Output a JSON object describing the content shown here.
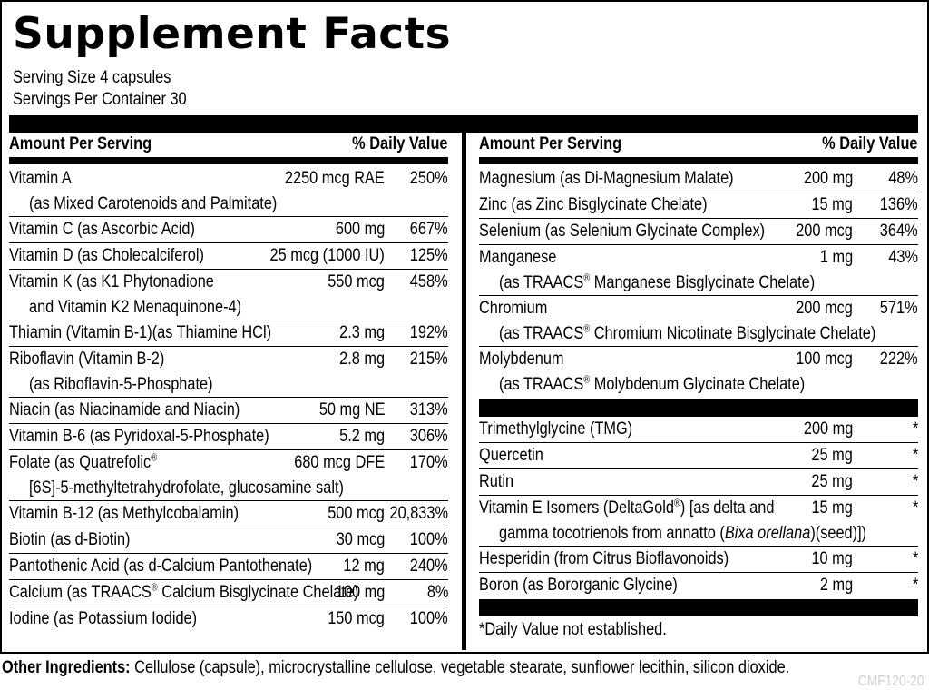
{
  "title": "Supplement Facts",
  "serving_size": "Serving Size 4 capsules",
  "servings_per_container": "Servings Per Container 30",
  "header": {
    "amount": "Amount Per Serving",
    "dv": "% Daily Value"
  },
  "left": [
    {
      "name": "Vitamin A",
      "name2": "(as Mixed Carotenoids and Palmitate)",
      "amount": "2250 mcg RAE",
      "dv": "250%"
    },
    {
      "name": "Vitamin C (as Ascorbic Acid)",
      "amount": "600 mg",
      "dv": "667%"
    },
    {
      "name": "Vitamin D (as Cholecalciferol)",
      "amount": "25 mcg (1000 IU)",
      "dv": "125%"
    },
    {
      "name": "Vitamin K (as K1 Phytonadione",
      "name2": "and Vitamin K2 Menaquinone-4)",
      "amount": "550 mcg",
      "dv": "458%"
    },
    {
      "name": "Thiamin (Vitamin B-1)(as Thiamine HCl)",
      "amount": "2.3 mg",
      "dv": "192%"
    },
    {
      "name": "Riboflavin (Vitamin B-2)",
      "name2": "(as Riboflavin-5-Phosphate)",
      "amount": "2.8 mg",
      "dv": "215%"
    },
    {
      "name": "Niacin (as Niacinamide and Niacin)",
      "amount": "50 mg NE",
      "dv": "313%"
    },
    {
      "name": "Vitamin B-6 (as Pyridoxal-5-Phosphate)",
      "amount": "5.2 mg",
      "dv": "306%"
    },
    {
      "name": "Folate (as Quatrefolic®",
      "name2": "[6S]-5-methyltetrahydrofolate, glucosamine salt)",
      "amount": "680 mcg DFE",
      "dv": "170%"
    },
    {
      "name": "Vitamin B-12 (as Methylcobalamin)",
      "amount": "500 mcg",
      "dv": "20,833%"
    },
    {
      "name": "Biotin (as d-Biotin)",
      "amount": "30 mcg",
      "dv": "100%"
    },
    {
      "name": "Pantothenic Acid (as d-Calcium Pantothenate)",
      "amount": "12 mg",
      "dv": "240%"
    },
    {
      "name": "Calcium (as TRAACS® Calcium Bisglycinate Chelate)",
      "amount": "100 mg",
      "dv": "8%"
    },
    {
      "name": "Iodine (as Potassium Iodide)",
      "amount": "150 mcg",
      "dv": "100%"
    }
  ],
  "right": [
    {
      "name": "Magnesium (as Di-Magnesium Malate)",
      "amount": "200 mg",
      "dv": "48%"
    },
    {
      "name": "Zinc (as Zinc Bisglycinate Chelate)",
      "amount": "15 mg",
      "dv": "136%"
    },
    {
      "name": "Selenium (as Selenium Glycinate Complex)",
      "amount": "200 mcg",
      "dv": "364%"
    },
    {
      "name": "Manganese",
      "name2": "(as TRAACS® Manganese Bisglycinate Chelate)",
      "amount": "1 mg",
      "dv": "43%"
    },
    {
      "name": "Chromium",
      "name2": "(as TRAACS® Chromium Nicotinate Bisglycinate Chelate)",
      "amount": "200 mcg",
      "dv": "571%"
    },
    {
      "name": "Molybdenum",
      "name2": "(as TRAACS® Molybdenum Glycinate Chelate)",
      "amount": "100 mcg",
      "dv": "222%"
    }
  ],
  "right2": [
    {
      "name": "Trimethylglycine (TMG)",
      "amount": "200 mg",
      "dv": "*"
    },
    {
      "name": "Quercetin",
      "amount": "25 mg",
      "dv": "*"
    },
    {
      "name": "Rutin",
      "amount": "25 mg",
      "dv": "*"
    },
    {
      "name": "Vitamin E Isomers (DeltaGold®) [as delta and",
      "name2": "gamma tocotrienols from annatto (Bixa orellana)(seed)])",
      "amount": "15 mg",
      "dv": "*"
    },
    {
      "name": "Hesperidin (from Citrus Bioflavonoids)",
      "amount": "10 mg",
      "dv": "*"
    },
    {
      "name": "Boron (as Bororganic Glycine)",
      "amount": "2 mg",
      "dv": "*"
    }
  ],
  "footnote": "*Daily Value not established.",
  "other_label": "Other Ingredients:",
  "other_text": " Cellulose (capsule), microcrystalline cellulose, vegetable stearate, sunflower lecithin, silicon dioxide.",
  "code": "CMF120-20"
}
